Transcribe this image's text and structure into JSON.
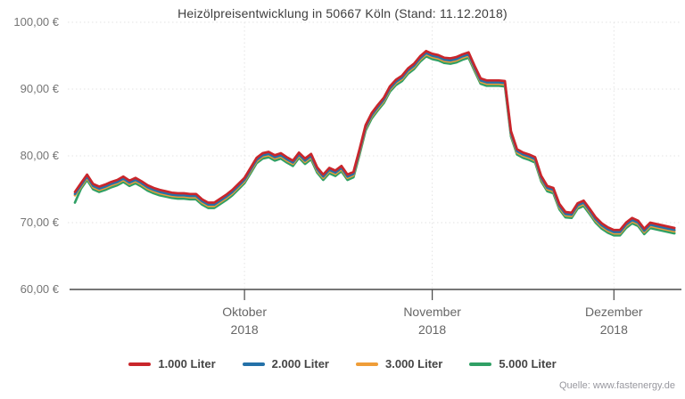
{
  "title": "Heizölpreisentwicklung in 50667 Köln (Stand: 11.12.2018)",
  "source": "Quelle: www.fastenergy.de",
  "axes": {
    "y": {
      "labels": [
        "100,00 €",
        "90,00 €",
        "80,00 €",
        "70,00 €",
        "60,00 €"
      ]
    },
    "x": {
      "months": [
        {
          "name": "Oktober",
          "year": "2018"
        },
        {
          "name": "November",
          "year": "2018"
        },
        {
          "name": "Dezember",
          "year": "2018"
        }
      ]
    }
  },
  "chart_data": {
    "type": "line",
    "title": "Heizölpreisentwicklung in 50667 Köln (Stand: 11.12.2018)",
    "xlabel": "",
    "ylabel": "",
    "ylim": [
      60,
      100
    ],
    "y_tick_values": [
      60,
      70,
      80,
      90,
      100
    ],
    "x_unit": "day",
    "x_tick_labels": [
      "Oktober 2018",
      "November 2018",
      "Dezember 2018"
    ],
    "x_tick_day_index": [
      28,
      59,
      89
    ],
    "grid": true,
    "legend_position": "bottom",
    "series": [
      {
        "name": "1.000 Liter",
        "color": "#c9262b",
        "values": [
          74.6,
          75.9,
          77.2,
          75.8,
          75.4,
          75.7,
          76.1,
          76.4,
          76.9,
          76.3,
          76.7,
          76.2,
          75.6,
          75.2,
          74.9,
          74.7,
          74.5,
          74.4,
          74.4,
          74.3,
          74.3,
          73.5,
          73.0,
          73.0,
          73.6,
          74.2,
          74.9,
          75.8,
          76.7,
          78.2,
          79.7,
          80.4,
          80.6,
          80.1,
          80.4,
          79.8,
          79.3,
          80.5,
          79.6,
          80.3,
          78.3,
          77.2,
          78.2,
          77.8,
          78.5,
          77.2,
          77.6,
          81.0,
          84.6,
          86.4,
          87.6,
          88.7,
          90.4,
          91.4,
          92.0,
          93.1,
          93.8,
          94.9,
          95.7,
          95.3,
          95.1,
          94.7,
          94.6,
          94.8,
          95.2,
          95.5,
          93.5,
          91.6,
          91.3,
          91.3,
          91.3,
          91.2,
          83.7,
          81.0,
          80.5,
          80.2,
          79.8,
          77.0,
          75.5,
          75.2,
          72.8,
          71.6,
          71.5,
          72.9,
          73.3,
          72.1,
          70.8,
          69.9,
          69.3,
          68.9,
          68.9,
          70.0,
          70.7,
          70.3,
          69.1,
          70.0,
          69.8,
          69.6,
          69.4,
          69.2
        ]
      },
      {
        "name": "2.000 Liter",
        "color": "#2471a8",
        "values": [
          74.3,
          75.6,
          76.9,
          75.5,
          75.1,
          75.4,
          75.8,
          76.1,
          76.6,
          76.0,
          76.4,
          75.9,
          75.3,
          74.9,
          74.6,
          74.4,
          74.2,
          74.1,
          74.1,
          74.0,
          74.0,
          73.2,
          72.7,
          72.7,
          73.3,
          73.9,
          74.6,
          75.5,
          76.4,
          77.9,
          79.4,
          80.1,
          80.3,
          79.8,
          80.1,
          79.5,
          79.0,
          80.2,
          79.3,
          80.0,
          78.0,
          76.9,
          77.9,
          77.5,
          78.2,
          76.9,
          77.3,
          80.7,
          84.3,
          86.1,
          87.3,
          88.4,
          90.1,
          91.1,
          91.7,
          92.8,
          93.5,
          94.6,
          95.4,
          95.0,
          94.8,
          94.4,
          94.3,
          94.5,
          94.9,
          95.2,
          93.2,
          91.3,
          91.0,
          91.0,
          91.0,
          90.9,
          83.4,
          80.7,
          80.2,
          79.9,
          79.5,
          76.7,
          75.2,
          74.9,
          72.5,
          71.3,
          71.2,
          72.6,
          73.0,
          71.8,
          70.5,
          69.6,
          69.0,
          68.6,
          68.6,
          69.7,
          70.4,
          70.0,
          68.8,
          69.7,
          69.5,
          69.3,
          69.1,
          68.9
        ]
      },
      {
        "name": "3.000 Liter",
        "color": "#ef9d38",
        "values": [
          74.1,
          75.4,
          76.7,
          75.3,
          74.9,
          75.2,
          75.6,
          75.9,
          76.4,
          75.8,
          76.2,
          75.7,
          75.1,
          74.7,
          74.4,
          74.2,
          74.0,
          73.9,
          73.9,
          73.8,
          73.8,
          73.0,
          72.5,
          72.5,
          73.1,
          73.7,
          74.4,
          75.3,
          76.2,
          77.7,
          79.2,
          79.9,
          80.1,
          79.6,
          79.9,
          79.3,
          78.8,
          80.0,
          79.1,
          79.8,
          77.8,
          76.7,
          77.7,
          77.3,
          78.0,
          76.7,
          77.1,
          80.5,
          84.1,
          85.9,
          87.1,
          88.2,
          89.9,
          90.9,
          91.5,
          92.6,
          93.3,
          94.4,
          95.2,
          94.8,
          94.6,
          94.2,
          94.1,
          94.3,
          94.7,
          95.0,
          93.0,
          91.1,
          90.8,
          90.8,
          90.8,
          90.7,
          83.2,
          80.5,
          80.0,
          79.7,
          79.3,
          76.5,
          75.0,
          74.7,
          72.3,
          71.1,
          71.0,
          72.4,
          72.8,
          71.6,
          70.3,
          69.4,
          68.8,
          68.4,
          68.4,
          69.5,
          70.2,
          69.8,
          68.6,
          69.5,
          69.3,
          69.1,
          68.9,
          68.7
        ]
      },
      {
        "name": "5.000 Liter",
        "color": "#30a065",
        "values": [
          73.0,
          75.1,
          76.4,
          75.0,
          74.6,
          74.9,
          75.3,
          75.6,
          76.1,
          75.5,
          75.9,
          75.4,
          74.8,
          74.4,
          74.1,
          73.9,
          73.7,
          73.6,
          73.6,
          73.5,
          73.5,
          72.7,
          72.2,
          72.2,
          72.8,
          73.4,
          74.1,
          75.0,
          75.9,
          77.4,
          78.9,
          79.6,
          79.8,
          79.3,
          79.6,
          79.0,
          78.5,
          79.7,
          78.8,
          79.5,
          77.5,
          76.4,
          77.4,
          77.0,
          77.7,
          76.4,
          76.8,
          80.2,
          83.8,
          85.6,
          86.8,
          87.9,
          89.6,
          90.6,
          91.2,
          92.3,
          93.0,
          94.1,
          94.9,
          94.5,
          94.3,
          93.9,
          93.8,
          94.0,
          94.4,
          94.7,
          92.7,
          90.8,
          90.5,
          90.5,
          90.5,
          90.4,
          82.9,
          80.2,
          79.7,
          79.4,
          79.0,
          76.2,
          74.7,
          74.4,
          72.0,
          70.8,
          70.7,
          72.1,
          72.5,
          71.3,
          70.0,
          69.1,
          68.5,
          68.1,
          68.1,
          69.2,
          69.9,
          69.5,
          68.3,
          69.2,
          69.0,
          68.8,
          68.6,
          68.4
        ]
      }
    ]
  },
  "style": {
    "grid_color": "#e3e3e3",
    "axis_color": "#4a4a4a",
    "background": "#ffffff"
  }
}
